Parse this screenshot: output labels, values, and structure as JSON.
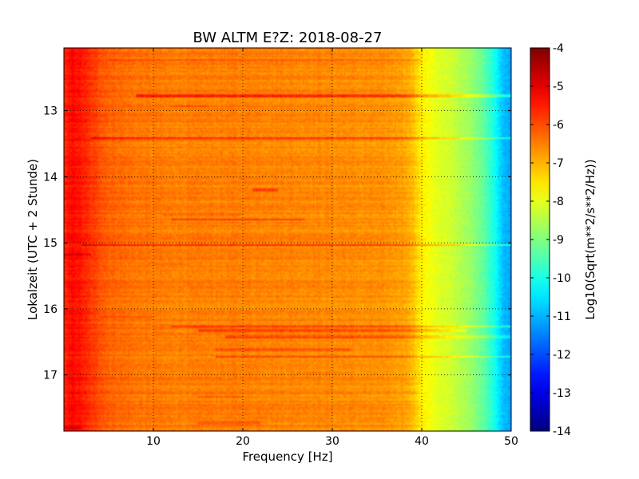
{
  "chart_data": {
    "type": "heatmap",
    "title": "BW ALTM E?Z: 2018-08-27",
    "xlabel": "Frequency [Hz]",
    "ylabel": "Lokalzeit (UTC + 2 Stunde)",
    "colorbar_label": "Log10(Sqrt(m**2/s**2/Hz))",
    "colormap": "jet",
    "grid": true,
    "xlim": [
      0,
      50
    ],
    "ylim_top_to_bottom": [
      12.05,
      17.85
    ],
    "x_ticks": [
      "10",
      "20",
      "30",
      "40",
      "50"
    ],
    "y_ticks": [
      "13",
      "14",
      "15",
      "16",
      "17"
    ],
    "colorbar_range": [
      -14,
      -4
    ],
    "colorbar_ticks": [
      "-4",
      "-5",
      "-6",
      "-7",
      "-8",
      "-9",
      "-10",
      "-11",
      "-12",
      "-13",
      "-14"
    ],
    "base_profile": {
      "frequency_hz": [
        0,
        1,
        2,
        3,
        5,
        8,
        12,
        20,
        30,
        36,
        38,
        39,
        40,
        41,
        43,
        45,
        47,
        48,
        49,
        50
      ],
      "log10_asd": [
        -5.7,
        -5.3,
        -5.5,
        -5.8,
        -6.2,
        -6.4,
        -6.5,
        -6.5,
        -6.6,
        -6.7,
        -6.8,
        -7.1,
        -7.6,
        -7.9,
        -8.2,
        -8.6,
        -9.3,
        -10.0,
        -10.8,
        -11.2
      ]
    },
    "bright_bands": [
      {
        "time_h": 12.23,
        "from_hz": 5,
        "to_hz": 40,
        "delta": 0.3
      },
      {
        "time_h": 12.77,
        "from_hz": 8,
        "to_hz": 50,
        "delta": 0.9
      },
      {
        "time_h": 12.93,
        "from_hz": 12,
        "to_hz": 16,
        "delta": 0.4
      },
      {
        "time_h": 13.42,
        "from_hz": 3,
        "to_hz": 50,
        "delta": 0.9
      },
      {
        "time_h": 14.2,
        "from_hz": 21,
        "to_hz": 24,
        "delta": 0.7
      },
      {
        "time_h": 14.58,
        "from_hz": 11,
        "to_hz": 20,
        "delta": 0.4
      },
      {
        "time_h": 14.65,
        "from_hz": 12,
        "to_hz": 27,
        "delta": 0.6
      },
      {
        "time_h": 15.03,
        "from_hz": 2,
        "to_hz": 50,
        "delta": 1.1
      },
      {
        "time_h": 15.18,
        "from_hz": 0,
        "to_hz": 3,
        "delta": 0.6
      },
      {
        "time_h": 15.33,
        "from_hz": 10,
        "to_hz": 14,
        "delta": 0.3
      },
      {
        "time_h": 16.12,
        "from_hz": 4,
        "to_hz": 10,
        "delta": 0.4
      },
      {
        "time_h": 16.27,
        "from_hz": 12,
        "to_hz": 50,
        "delta": 0.8
      },
      {
        "time_h": 16.33,
        "from_hz": 15,
        "to_hz": 45,
        "delta": 0.7
      },
      {
        "time_h": 16.43,
        "from_hz": 18,
        "to_hz": 50,
        "delta": 0.6
      },
      {
        "time_h": 16.62,
        "from_hz": 17,
        "to_hz": 32,
        "delta": 0.4
      },
      {
        "time_h": 16.73,
        "from_hz": 17,
        "to_hz": 50,
        "delta": 0.8
      },
      {
        "time_h": 16.97,
        "from_hz": 26,
        "to_hz": 32,
        "delta": 0.3
      },
      {
        "time_h": 17.33,
        "from_hz": 15,
        "to_hz": 20,
        "delta": 0.4
      },
      {
        "time_h": 17.73,
        "from_hz": 15,
        "to_hz": 22,
        "delta": 0.4
      },
      {
        "time_h": 17.8,
        "from_hz": 0,
        "to_hz": 2,
        "delta": 0.5
      }
    ]
  }
}
